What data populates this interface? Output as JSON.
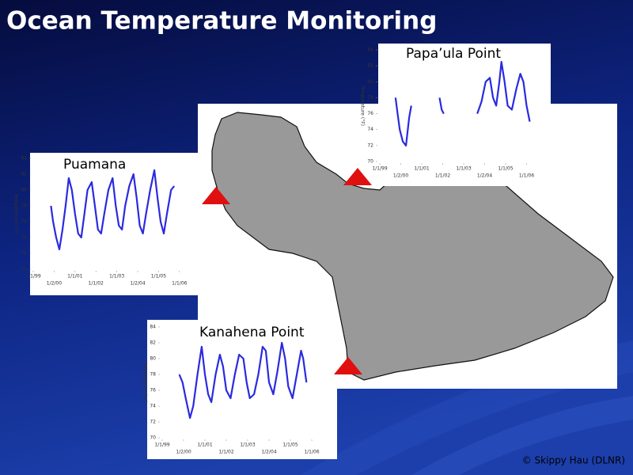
{
  "title": "Ocean Temperature Monitoring",
  "credit": "© Skippy Hau (DLNR)",
  "chart_data": [
    {
      "type": "line",
      "title": "Puamana",
      "ylabel": "Temperature (°F)",
      "xlim": [
        1999,
        2006.5
      ],
      "ylim": [
        70,
        84
      ],
      "yticks": [
        70,
        72,
        74,
        76,
        78,
        80,
        82,
        84
      ],
      "xticks": [
        {
          "value": 1999,
          "label": "1/1/99"
        },
        {
          "value": 2000,
          "label": "1/2/00"
        },
        {
          "value": 2001,
          "label": "1/1/01"
        },
        {
          "value": 2002,
          "label": "1/1/02"
        },
        {
          "value": 2003,
          "label": "1/1/03"
        },
        {
          "value": 2004,
          "label": "1/2/04"
        },
        {
          "value": 2005,
          "label": "1/1/05"
        },
        {
          "value": 2006,
          "label": "1/1/06"
        }
      ],
      "series": [
        {
          "color": "#2a2ae0",
          "x": [
            1999.85,
            1999.95,
            2000.1,
            2000.25,
            2000.4,
            2000.55,
            2000.7,
            2000.85,
            2001.0,
            2001.15,
            2001.3,
            2001.45,
            2001.6,
            2001.8,
            2001.95,
            2002.1,
            2002.25,
            2002.4,
            2002.6,
            2002.8,
            2002.95,
            2003.1,
            2003.25,
            2003.4,
            2003.6,
            2003.8,
            2003.95,
            2004.1,
            2004.25,
            2004.4,
            2004.6,
            2004.8,
            2004.95,
            2005.1,
            2005.25,
            2005.4,
            2005.6,
            2005.75
          ],
          "values": [
            78,
            76,
            74,
            72.5,
            75,
            78,
            81.5,
            80,
            77,
            74.5,
            74,
            77,
            80,
            81,
            78,
            75,
            74.5,
            77,
            80,
            81.5,
            78,
            75.5,
            75,
            78,
            80.5,
            82,
            79,
            75.5,
            74.5,
            77,
            80,
            82.5,
            79,
            76,
            74.5,
            77,
            80,
            80.5
          ]
        }
      ]
    },
    {
      "type": "line",
      "title": "Papa’ula Point",
      "ylabel": "Temperature (°F)",
      "xlim": [
        1999,
        2007
      ],
      "ylim": [
        70,
        84
      ],
      "yticks": [
        70,
        72,
        74,
        76,
        78,
        80,
        82,
        84
      ],
      "xticks": [
        {
          "value": 1999,
          "label": "1/1/99"
        },
        {
          "value": 2000,
          "label": "1/2/00"
        },
        {
          "value": 2001,
          "label": "1/1/01"
        },
        {
          "value": 2002,
          "label": "1/1/02"
        },
        {
          "value": 2003,
          "label": "1/1/03"
        },
        {
          "value": 2004,
          "label": "1/2/04"
        },
        {
          "value": 2005,
          "label": "1/1/05"
        },
        {
          "value": 2006,
          "label": "1/1/06"
        }
      ],
      "series": [
        {
          "color": "#2a2ae0",
          "x": [
            1999.75,
            1999.85,
            1999.95,
            2000.1,
            2000.25,
            2000.4,
            2000.5,
            2001.2,
            2001.85,
            2001.95,
            2002.05,
            2003.0,
            2003.65,
            2003.85,
            2004.05,
            2004.25,
            2004.4,
            2004.55,
            2004.7,
            2004.8,
            2004.95,
            2005.1,
            2005.3,
            2005.5,
            2005.7,
            2005.85,
            2006.0,
            2006.15
          ],
          "values": [
            78,
            76,
            74,
            72.5,
            72,
            75.5,
            77,
            null,
            78,
            76.5,
            76,
            null,
            76,
            77.5,
            80,
            80.5,
            78,
            77,
            80,
            82.5,
            80,
            77,
            76.5,
            79,
            81,
            80,
            77,
            75
          ]
        }
      ]
    },
    {
      "type": "line",
      "title": "Kanahena Point",
      "ylabel": "Temperature (°F)",
      "xlim": [
        1999,
        2007
      ],
      "ylim": [
        70,
        84
      ],
      "yticks": [
        70,
        72,
        74,
        76,
        78,
        80,
        82,
        84
      ],
      "xticks": [
        {
          "value": 1999,
          "label": "1/1/99"
        },
        {
          "value": 2000,
          "label": "1/2/00"
        },
        {
          "value": 2001,
          "label": "1/1/01"
        },
        {
          "value": 2002,
          "label": "1/1/02"
        },
        {
          "value": 2003,
          "label": "1/1/03"
        },
        {
          "value": 2004,
          "label": "1/2/04"
        },
        {
          "value": 2005,
          "label": "1/1/05"
        },
        {
          "value": 2006,
          "label": "1/1/06"
        }
      ],
      "series": [
        {
          "color": "#2a2ae0",
          "x": [
            1999.8,
            1999.95,
            2000.1,
            2000.3,
            2000.45,
            2000.65,
            2000.85,
            2001.0,
            2001.15,
            2001.3,
            2001.5,
            2001.7,
            2001.85,
            2002.0,
            2002.2,
            2002.4,
            2002.6,
            2002.8,
            2002.95,
            2003.1,
            2003.3,
            2003.5,
            2003.7,
            2003.85,
            2004.0,
            2004.2,
            2004.4,
            2004.6,
            2004.75,
            2004.9,
            2005.1,
            2005.3,
            2005.5,
            2005.6,
            2005.75
          ],
          "values": [
            78,
            77,
            75,
            72.5,
            74,
            78,
            81.5,
            78,
            75.5,
            74.5,
            78,
            80.5,
            79,
            76,
            75,
            78,
            80.5,
            80,
            77,
            75,
            75.5,
            78,
            81.5,
            81,
            77,
            75.5,
            78.5,
            82,
            80,
            76.5,
            75,
            78,
            81,
            80,
            77
          ]
        }
      ]
    }
  ]
}
